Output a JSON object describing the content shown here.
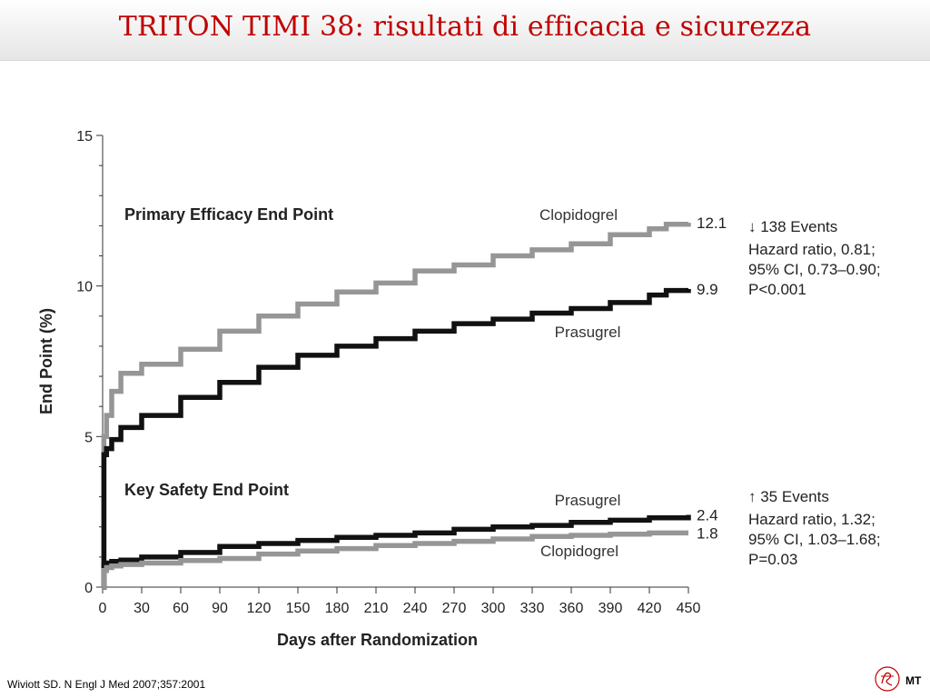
{
  "page": {
    "title": "TRITON TIMI 38: risultati di efficacia e sicurezza",
    "citation": "Wiviott SD. N Engl J Med 2007;357:2001",
    "author_initials": "MT"
  },
  "colors": {
    "title": "#c00000",
    "clopidogrel": "#969696",
    "prasugrel": "#111111"
  },
  "chart_data": {
    "type": "line",
    "xlabel": "Days after Randomization",
    "ylabel": "End Point (%)",
    "xlim": [
      0,
      450
    ],
    "ylim": [
      0,
      15
    ],
    "xticks": [
      0,
      30,
      60,
      90,
      120,
      150,
      180,
      210,
      240,
      270,
      300,
      330,
      360,
      390,
      420,
      450
    ],
    "yticks": [
      0,
      5,
      10,
      15
    ],
    "grid": false,
    "panels": [
      {
        "heading": "Primary Efficacy End Point",
        "series": [
          {
            "name": "Clopidogrel",
            "end_label": "12.1",
            "x": [
              0,
              1,
              3,
              7,
              14,
              30,
              60,
              90,
              120,
              150,
              180,
              210,
              240,
              270,
              300,
              330,
              360,
              390,
              420,
              433,
              450
            ],
            "y": [
              0,
              5.0,
              5.7,
              6.5,
              7.1,
              7.4,
              7.9,
              8.5,
              9.0,
              9.4,
              9.8,
              10.1,
              10.5,
              10.7,
              11.0,
              11.2,
              11.4,
              11.7,
              11.9,
              12.05,
              12.1
            ]
          },
          {
            "name": "Prasugrel",
            "end_label": "9.9",
            "x": [
              0,
              1,
              3,
              7,
              14,
              30,
              60,
              90,
              120,
              150,
              180,
              210,
              240,
              270,
              300,
              330,
              360,
              390,
              420,
              433,
              450
            ],
            "y": [
              0,
              4.4,
              4.6,
              4.9,
              5.3,
              5.7,
              6.3,
              6.8,
              7.3,
              7.7,
              8.0,
              8.25,
              8.5,
              8.75,
              8.9,
              9.1,
              9.25,
              9.45,
              9.7,
              9.85,
              9.9
            ]
          }
        ],
        "annotation": [
          "↓ 138 Events",
          "Hazard ratio, 0.81;",
          "95% CI, 0.73–0.90;",
          "P<0.001"
        ]
      },
      {
        "heading": "Key Safety End Point",
        "series": [
          {
            "name": "Prasugrel",
            "end_label": "2.4",
            "x": [
              0,
              1,
              3,
              7,
              14,
              30,
              60,
              90,
              120,
              150,
              180,
              210,
              240,
              270,
              300,
              330,
              360,
              390,
              420,
              450
            ],
            "y": [
              0,
              0.7,
              0.8,
              0.85,
              0.9,
              1.0,
              1.15,
              1.35,
              1.45,
              1.55,
              1.65,
              1.72,
              1.8,
              1.92,
              2.0,
              2.05,
              2.15,
              2.22,
              2.3,
              2.4
            ]
          },
          {
            "name": "Clopidogrel",
            "end_label": "1.8",
            "x": [
              0,
              1,
              3,
              7,
              14,
              30,
              60,
              90,
              120,
              150,
              180,
              210,
              240,
              270,
              300,
              330,
              360,
              390,
              420,
              450
            ],
            "y": [
              0,
              0.55,
              0.65,
              0.7,
              0.75,
              0.8,
              0.88,
              0.95,
              1.1,
              1.2,
              1.28,
              1.38,
              1.45,
              1.52,
              1.6,
              1.68,
              1.72,
              1.76,
              1.8,
              1.8
            ]
          }
        ],
        "annotation": [
          "↑ 35 Events",
          "Hazard ratio, 1.32;",
          "95% CI, 1.03–1.68;",
          "P=0.03"
        ]
      }
    ]
  }
}
